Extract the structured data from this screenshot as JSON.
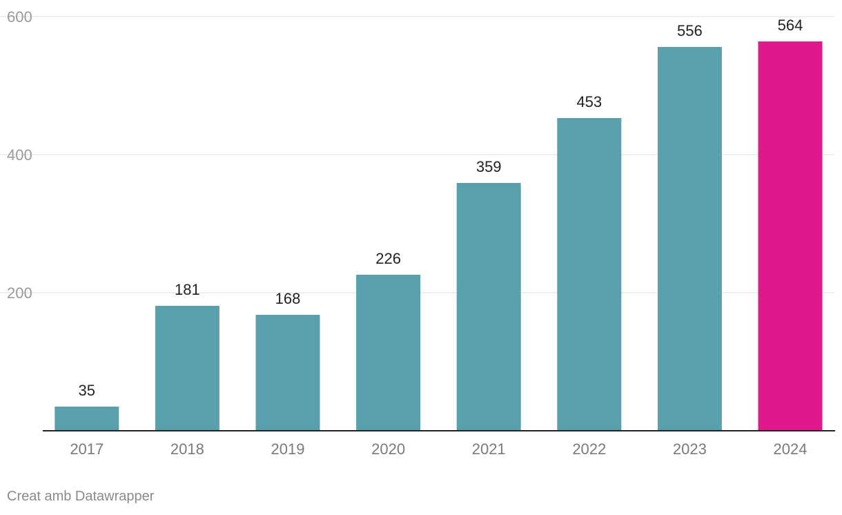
{
  "chart_data": {
    "type": "bar",
    "categories": [
      "2017",
      "2018",
      "2019",
      "2020",
      "2021",
      "2022",
      "2023",
      "2024"
    ],
    "values": [
      35,
      181,
      168,
      226,
      359,
      453,
      556,
      564
    ],
    "highlight_category": "2024",
    "colors": {
      "default": "#58a0ab",
      "highlight": "#dd198c"
    },
    "ylim": [
      0,
      600
    ],
    "yticks": [
      200,
      400,
      600
    ],
    "title": "",
    "xlabel": "",
    "ylabel": "",
    "grid": true
  },
  "footer": {
    "credit": "Creat amb Datawrapper"
  }
}
